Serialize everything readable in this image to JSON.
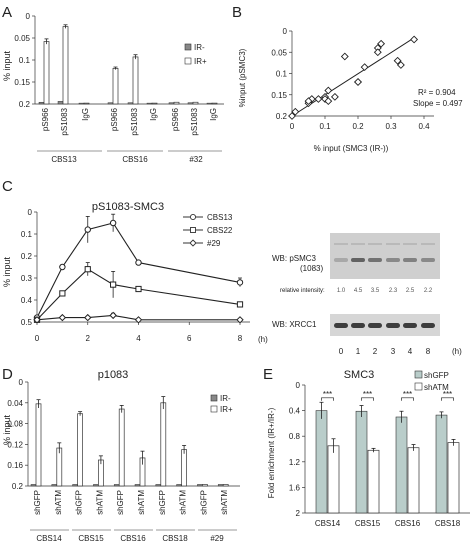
{
  "panels": {
    "A": {
      "letter": "A",
      "ylabel": "% input",
      "yticks": [
        "0.2",
        "0.15",
        "0.1",
        "0.05",
        "0"
      ],
      "legend": [
        "IR-",
        "IR+"
      ],
      "xticks": [
        "pS966",
        "pS1083",
        "IgG",
        "pS966",
        "pS1083",
        "IgG",
        "pS966",
        "pS1083",
        "IgG"
      ],
      "groups": [
        "CBS13",
        "CBS16",
        "#32"
      ]
    },
    "B": {
      "letter": "B",
      "ylabel": "%input (pSMC3)",
      "xlabel": "% input (SMC3 (IR-))",
      "xticks": [
        "0",
        "0.1",
        "0.2",
        "0.3",
        "0.4"
      ],
      "yticks": [
        "0.2",
        "0.15",
        "0.1",
        "0.05",
        "0"
      ],
      "r2": "R² = 0.904",
      "slope": "Slope = 0.497"
    },
    "C": {
      "letter": "C",
      "title": "pS1083-SMC3",
      "ylabel": "% input",
      "yticks": [
        "0.5",
        "0.4",
        "0.3",
        "0.2",
        "0.1",
        "0"
      ],
      "xticks": [
        "0",
        "2",
        "4",
        "6",
        "8"
      ],
      "xunit": "(h)",
      "legend": [
        "CBS13",
        "CBS22",
        "#29"
      ],
      "blot_label_1": "WB: pSMC3",
      "blot_label_1b": "(1083)",
      "relative_intensity_label": "relative intensity:",
      "intensities": [
        "1.0",
        "4.5",
        "3.5",
        "2.3",
        "2.5",
        "2.2"
      ],
      "blot_label_2": "WB: XRCC1",
      "lanes": [
        "0",
        "1",
        "2",
        "3",
        "4",
        "8"
      ],
      "lane_unit": "(h)"
    },
    "D": {
      "letter": "D",
      "title": "p1083",
      "ylabel": "% input",
      "yticks": [
        "0.2",
        "0.16",
        "0.12",
        "0.08",
        "0.04",
        "0"
      ],
      "legend": [
        "IR-",
        "IR+"
      ],
      "xticks": [
        "shGFP",
        "shATM",
        "shGFP",
        "shATM",
        "shGFP",
        "shATM",
        "shGFP",
        "shATM",
        "shGFP",
        "shATM"
      ],
      "groups": [
        "CBS14",
        "CBS15",
        "CBS16",
        "CBS18",
        "#29"
      ]
    },
    "E": {
      "letter": "E",
      "title": "SMC3",
      "ylabel": "Fold enrichment (IR+/IR-)",
      "yticks": [
        "2",
        "1.6",
        "1.2",
        "0.8",
        "0.4",
        "0"
      ],
      "legend": [
        "shGFP",
        "shATM"
      ],
      "categories": [
        "CBS14",
        "CBS15",
        "CBS16",
        "CBS18"
      ],
      "sig": [
        "***",
        "***",
        "***",
        "***"
      ]
    }
  },
  "chart_data": [
    {
      "panel": "A",
      "type": "bar",
      "ylim": [
        0,
        0.2
      ],
      "categories": [
        "CBS13 pS966",
        "CBS13 pS1083",
        "CBS13 IgG",
        "CBS16 pS966",
        "CBS16 pS1083",
        "CBS16 IgG",
        "#32 pS966",
        "#32 pS1083",
        "#32 IgG"
      ],
      "series": [
        {
          "name": "IR-",
          "values": [
            0.004,
            0.006,
            0.002,
            0.003,
            0.003,
            0.002,
            0.003,
            0.003,
            0.002
          ],
          "errors": [
            0.001,
            0.001,
            0.0005,
            0.001,
            0.001,
            0.0005,
            0.001,
            0.001,
            0.0005
          ]
        },
        {
          "name": "IR+",
          "values": [
            0.142,
            0.176,
            0.002,
            0.081,
            0.107,
            0.002,
            0.004,
            0.004,
            0.002
          ],
          "errors": [
            0.006,
            0.004,
            0.0005,
            0.003,
            0.005,
            0.0005,
            0.001,
            0.001,
            0.0005
          ]
        }
      ]
    },
    {
      "panel": "B",
      "type": "scatter",
      "xlim": [
        0,
        0.4
      ],
      "ylim": [
        0,
        0.2
      ],
      "x": [
        0.0,
        0.01,
        0.05,
        0.06,
        0.05,
        0.08,
        0.1,
        0.1,
        0.11,
        0.11,
        0.13,
        0.16,
        0.2,
        0.2,
        0.22,
        0.26,
        0.27,
        0.26,
        0.32,
        0.33,
        0.37
      ],
      "y": [
        0.0,
        0.01,
        0.03,
        0.04,
        0.035,
        0.04,
        0.045,
        0.04,
        0.035,
        0.06,
        0.045,
        0.14,
        0.08,
        0.08,
        0.115,
        0.16,
        0.17,
        0.15,
        0.13,
        0.12,
        0.18
      ],
      "fit": {
        "r2": 0.904,
        "slope": 0.497
      }
    },
    {
      "panel": "C",
      "type": "line",
      "xlim": [
        0,
        8
      ],
      "ylim": [
        0,
        0.5
      ],
      "x": [
        0,
        1,
        2,
        3,
        4,
        8
      ],
      "series": [
        {
          "name": "CBS13",
          "values": [
            0.02,
            0.25,
            0.42,
            0.45,
            0.27,
            0.18
          ],
          "errors": [
            0.01,
            0.01,
            0.06,
            0.04,
            0.01,
            0.02
          ]
        },
        {
          "name": "CBS22",
          "values": [
            0.01,
            0.13,
            0.24,
            0.17,
            0.15,
            0.08
          ],
          "errors": [
            0.005,
            0.01,
            0.03,
            0.06,
            0.01,
            0.01
          ]
        },
        {
          "name": "#29",
          "values": [
            0.01,
            0.02,
            0.02,
            0.03,
            0.01,
            0.01
          ],
          "errors": [
            0.003,
            0.005,
            0.005,
            0.01,
            0.003,
            0.003
          ]
        }
      ]
    },
    {
      "panel": "D",
      "type": "bar",
      "ylim": [
        0,
        0.2
      ],
      "categories": [
        "CBS14 shGFP",
        "CBS14 shATM",
        "CBS15 shGFP",
        "CBS15 shATM",
        "CBS16 shGFP",
        "CBS16 shATM",
        "CBS18 shGFP",
        "CBS18 shATM",
        "#29 shGFP",
        "#29 shATM"
      ],
      "series": [
        {
          "name": "IR-",
          "values": [
            0.003,
            0.003,
            0.003,
            0.003,
            0.003,
            0.003,
            0.003,
            0.003,
            0.003,
            0.003
          ],
          "errors": [
            0.001,
            0.001,
            0.001,
            0.001,
            0.001,
            0.001,
            0.001,
            0.001,
            0.0005,
            0.0005
          ]
        },
        {
          "name": "IR+",
          "values": [
            0.158,
            0.073,
            0.139,
            0.05,
            0.148,
            0.054,
            0.16,
            0.07,
            0.003,
            0.003
          ],
          "errors": [
            0.008,
            0.01,
            0.004,
            0.008,
            0.007,
            0.013,
            0.012,
            0.008,
            0.001,
            0.001
          ]
        }
      ]
    },
    {
      "panel": "E",
      "type": "bar",
      "ylim": [
        0,
        2
      ],
      "categories": [
        "CBS14",
        "CBS15",
        "CBS16",
        "CBS18"
      ],
      "series": [
        {
          "name": "shGFP",
          "values": [
            1.6,
            1.59,
            1.5,
            1.53
          ],
          "errors": [
            0.13,
            0.09,
            0.09,
            0.05
          ]
        },
        {
          "name": "shATM",
          "values": [
            1.05,
            0.98,
            1.02,
            1.1
          ],
          "errors": [
            0.11,
            0.03,
            0.05,
            0.05
          ]
        }
      ]
    }
  ]
}
